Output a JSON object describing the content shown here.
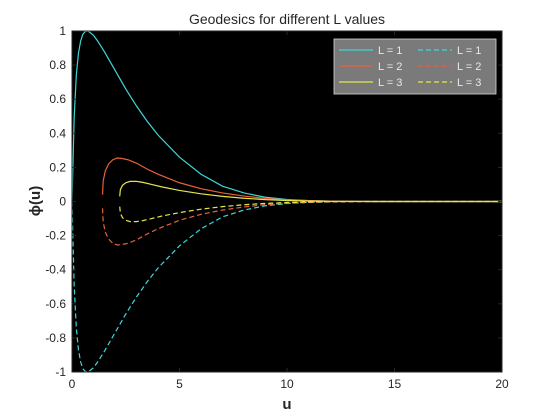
{
  "chart_data": {
    "type": "line",
    "title": "Geodesics for different L values",
    "xlabel": "u",
    "ylabel": "ϕ(u)",
    "xlim": [
      0,
      20
    ],
    "ylim": [
      -1,
      1
    ],
    "xticks": [
      0,
      5,
      10,
      15,
      20
    ],
    "yticks": [
      1,
      0.8,
      0.6,
      0.4,
      0.2,
      0,
      -0.2,
      -0.4,
      -0.6,
      -0.8,
      -1
    ],
    "background": "#000000",
    "grid": false,
    "legend_position": "top-right",
    "series": [
      {
        "name": "L = 1",
        "color": "#3fd6d6",
        "dash": "solid",
        "x": [
          0,
          0.1,
          0.2,
          0.3,
          0.4,
          0.5,
          0.6,
          0.7,
          0.8,
          1.0,
          1.2,
          1.5,
          2.0,
          2.5,
          3.0,
          3.5,
          4.0,
          5.0,
          6.0,
          7.0,
          8.0,
          9.0,
          10.0,
          11.0,
          12.0,
          14.0,
          16.0,
          18.0,
          20.0
        ],
        "y": [
          0,
          0.49,
          0.74,
          0.87,
          0.94,
          0.98,
          0.995,
          1.0,
          0.995,
          0.975,
          0.94,
          0.88,
          0.77,
          0.66,
          0.56,
          0.47,
          0.39,
          0.26,
          0.16,
          0.09,
          0.05,
          0.025,
          0.012,
          0.005,
          0.002,
          0,
          0,
          0,
          0
        ]
      },
      {
        "name": "L = 1",
        "color": "#3fd6d6",
        "dash": "dashed",
        "x": [
          0,
          0.1,
          0.2,
          0.3,
          0.4,
          0.5,
          0.6,
          0.7,
          0.8,
          1.0,
          1.2,
          1.5,
          2.0,
          2.5,
          3.0,
          3.5,
          4.0,
          5.0,
          6.0,
          7.0,
          8.0,
          9.0,
          10.0,
          11.0,
          12.0,
          14.0,
          16.0,
          18.0,
          20.0
        ],
        "y": [
          0,
          -0.49,
          -0.74,
          -0.87,
          -0.94,
          -0.98,
          -0.995,
          -1.0,
          -0.995,
          -0.975,
          -0.94,
          -0.88,
          -0.77,
          -0.66,
          -0.56,
          -0.47,
          -0.39,
          -0.26,
          -0.16,
          -0.09,
          -0.05,
          -0.025,
          -0.012,
          -0.005,
          -0.002,
          0,
          0,
          0,
          0
        ]
      },
      {
        "name": "L = 2",
        "color": "#e8613a",
        "dash": "solid",
        "x": [
          1.42,
          1.45,
          1.55,
          1.7,
          1.9,
          2.1,
          2.3,
          2.6,
          3.0,
          3.5,
          4.0,
          5.0,
          6.0,
          7.0,
          8.0,
          9.0,
          10.0,
          11.0,
          12.0,
          14.0,
          16.0,
          18.0,
          20.0
        ],
        "y": [
          0.04,
          0.12,
          0.18,
          0.22,
          0.245,
          0.255,
          0.253,
          0.245,
          0.225,
          0.19,
          0.16,
          0.11,
          0.075,
          0.05,
          0.032,
          0.018,
          0.01,
          0.005,
          0.002,
          0,
          0,
          0,
          0
        ]
      },
      {
        "name": "L = 2",
        "color": "#e8613a",
        "dash": "dashed",
        "x": [
          1.42,
          1.45,
          1.55,
          1.7,
          1.9,
          2.1,
          2.3,
          2.6,
          3.0,
          3.5,
          4.0,
          5.0,
          6.0,
          7.0,
          8.0,
          9.0,
          10.0,
          11.0,
          12.0,
          14.0,
          16.0,
          18.0,
          20.0
        ],
        "y": [
          -0.04,
          -0.12,
          -0.18,
          -0.22,
          -0.245,
          -0.255,
          -0.253,
          -0.245,
          -0.225,
          -0.19,
          -0.16,
          -0.11,
          -0.075,
          -0.05,
          -0.032,
          -0.018,
          -0.01,
          -0.005,
          -0.002,
          0,
          0,
          0,
          0
        ]
      },
      {
        "name": "L = 3",
        "color": "#e5e54a",
        "dash": "solid",
        "x": [
          2.22,
          2.25,
          2.35,
          2.5,
          2.7,
          3.0,
          3.3,
          3.7,
          4.2,
          5.0,
          6.0,
          7.0,
          8.0,
          9.0,
          10.0,
          11.0,
          12.0,
          14.0,
          16.0,
          18.0,
          20.0
        ],
        "y": [
          0.03,
          0.07,
          0.095,
          0.11,
          0.118,
          0.118,
          0.112,
          0.1,
          0.085,
          0.065,
          0.045,
          0.03,
          0.019,
          0.011,
          0.006,
          0.003,
          0.001,
          0,
          0,
          0,
          0
        ]
      },
      {
        "name": "L = 3",
        "color": "#e5e54a",
        "dash": "dashed",
        "x": [
          2.22,
          2.25,
          2.35,
          2.5,
          2.7,
          3.0,
          3.3,
          3.7,
          4.2,
          5.0,
          6.0,
          7.0,
          8.0,
          9.0,
          10.0,
          11.0,
          12.0,
          14.0,
          16.0,
          18.0,
          20.0
        ],
        "y": [
          -0.03,
          -0.07,
          -0.095,
          -0.11,
          -0.118,
          -0.118,
          -0.112,
          -0.1,
          -0.085,
          -0.065,
          -0.045,
          -0.03,
          -0.019,
          -0.011,
          -0.006,
          -0.003,
          -0.001,
          0,
          0,
          0,
          0
        ]
      }
    ]
  }
}
